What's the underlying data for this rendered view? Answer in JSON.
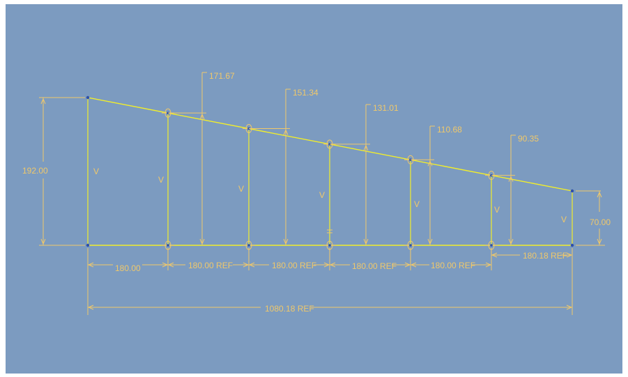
{
  "colors": {
    "frame": "#ffffff",
    "background": "#7c9bc0",
    "geometry": "#f2ee2a",
    "dimension": "#f0c86a",
    "vertex": "#2f4fa8"
  },
  "dimensions": {
    "left_height": "192.00",
    "right_height": "70.00",
    "stations": [
      "171.67",
      "151.34",
      "131.01",
      "110.68",
      "90.35"
    ],
    "spans": [
      "180.00",
      "180.00 REF",
      "180.00 REF",
      "180.00 REF",
      "180.00 REF",
      "180.18 REF"
    ],
    "total": "1080.18 REF"
  },
  "constraints": {
    "vertical_marks": [
      "V",
      "V",
      "V",
      "V",
      "V",
      "V",
      "V"
    ]
  }
}
